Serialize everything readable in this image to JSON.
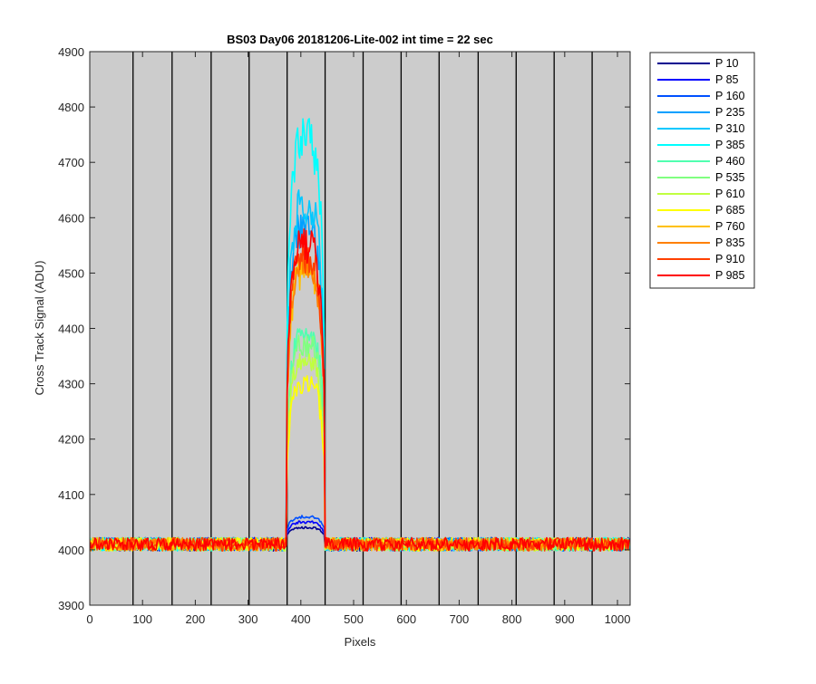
{
  "chart_data": {
    "type": "line",
    "title": "BS03 Day06 20181206-Lite-002 int time = 22 sec",
    "xlabel": "Pixels",
    "ylabel": "Cross Track Signal (ADU)",
    "xlim": [
      0,
      1024
    ],
    "ylim": [
      3900,
      4900
    ],
    "xticks": [
      0,
      100,
      200,
      300,
      400,
      500,
      600,
      700,
      800,
      900,
      1000
    ],
    "yticks": [
      3900,
      4000,
      4100,
      4200,
      4300,
      4400,
      4500,
      4600,
      4700,
      4800,
      4900
    ],
    "vertical_lines_x": [
      82,
      156,
      230,
      302,
      374,
      446,
      518,
      590,
      662,
      736,
      808,
      880,
      952
    ],
    "background_color": "#cccccc",
    "grid": false,
    "legend_position": "outside-right",
    "baseline": 4010,
    "noise_amplitude": 12,
    "peak_x_range": [
      374,
      444
    ],
    "series": [
      {
        "name": "P 10",
        "color": "#00008f",
        "peak": 4040
      },
      {
        "name": "P 85",
        "color": "#0000ff",
        "peak": 4050
      },
      {
        "name": "P 160",
        "color": "#0050ff",
        "peak": 4060
      },
      {
        "name": "P 235",
        "color": "#00a0ff",
        "peak": 4580
      },
      {
        "name": "P 310",
        "color": "#00c8ff",
        "peak": 4620
      },
      {
        "name": "P 385",
        "color": "#00ffff",
        "peak": 4740
      },
      {
        "name": "P 460",
        "color": "#50ffb0",
        "peak": 4390
      },
      {
        "name": "P 535",
        "color": "#80ff80",
        "peak": 4370
      },
      {
        "name": "P 610",
        "color": "#c0ff40",
        "peak": 4340
      },
      {
        "name": "P 685",
        "color": "#ffff00",
        "peak": 4300
      },
      {
        "name": "P 760",
        "color": "#ffc000",
        "peak": 4500
      },
      {
        "name": "P 835",
        "color": "#ff8000",
        "peak": 4510
      },
      {
        "name": "P 910",
        "color": "#ff4000",
        "peak": 4530
      },
      {
        "name": "P 985",
        "color": "#ff0000",
        "peak": 4550
      }
    ]
  }
}
